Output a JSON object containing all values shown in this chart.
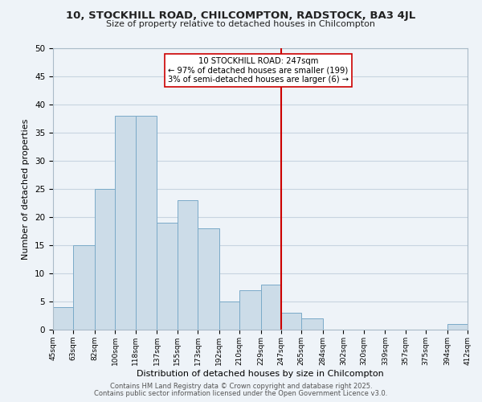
{
  "title1": "10, STOCKHILL ROAD, CHILCOMPTON, RADSTOCK, BA3 4JL",
  "title2": "Size of property relative to detached houses in Chilcompton",
  "xlabel": "Distribution of detached houses by size in Chilcompton",
  "ylabel": "Number of detached properties",
  "bin_edges": [
    45,
    63,
    82,
    100,
    118,
    137,
    155,
    173,
    192,
    210,
    229,
    247,
    265,
    284,
    302,
    320,
    339,
    357,
    375,
    394,
    412
  ],
  "bin_counts": [
    4,
    15,
    25,
    38,
    38,
    19,
    23,
    18,
    5,
    7,
    8,
    3,
    2,
    0,
    0,
    0,
    0,
    0,
    0,
    1
  ],
  "bar_color": "#ccdce8",
  "bar_edge_color": "#7aaac8",
  "vline_x": 247,
  "vline_color": "#cc0000",
  "annotation_line1": "10 STOCKHILL ROAD: 247sqm",
  "annotation_line2": "← 97% of detached houses are smaller (199)",
  "annotation_line3": "3% of semi-detached houses are larger (6) →",
  "annotation_box_color": "#ffffff",
  "annotation_box_edge_color": "#cc0000",
  "ylim": [
    0,
    50
  ],
  "yticks": [
    0,
    5,
    10,
    15,
    20,
    25,
    30,
    35,
    40,
    45,
    50
  ],
  "grid_color": "#c8d4e0",
  "background_color": "#eef3f8",
  "footer1": "Contains HM Land Registry data © Crown copyright and database right 2025.",
  "footer2": "Contains public sector information licensed under the Open Government Licence v3.0.",
  "tick_labels": [
    "45sqm",
    "63sqm",
    "82sqm",
    "100sqm",
    "118sqm",
    "137sqm",
    "155sqm",
    "173sqm",
    "192sqm",
    "210sqm",
    "229sqm",
    "247sqm",
    "265sqm",
    "284sqm",
    "302sqm",
    "320sqm",
    "339sqm",
    "357sqm",
    "375sqm",
    "394sqm",
    "412sqm"
  ]
}
